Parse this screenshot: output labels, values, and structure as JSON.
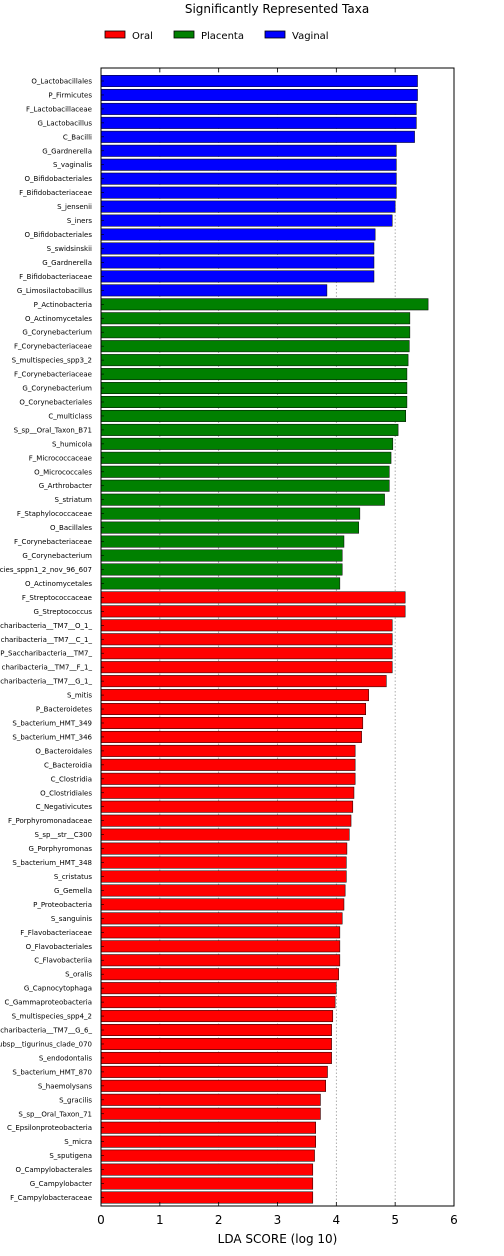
{
  "chart_data": {
    "type": "bar",
    "orientation": "horizontal",
    "title": "Significantly Represented Taxa",
    "xlabel": "LDA SCORE (log 10)",
    "ylabel": "",
    "xlim": [
      0,
      6
    ],
    "xticks": [
      0,
      1,
      2,
      3,
      4,
      5,
      6
    ],
    "grid": "vertical-dashed",
    "legend_position": "top",
    "series": [
      {
        "name": "Oral",
        "color": "#ff0000"
      },
      {
        "name": "Placenta",
        "color": "#008000"
      },
      {
        "name": "Vaginal",
        "color": "#0000ff"
      }
    ],
    "bars": [
      {
        "label": "O_Lactobacillales",
        "value": 5.38,
        "group": "Vaginal"
      },
      {
        "label": "P_Firmicutes",
        "value": 5.38,
        "group": "Vaginal"
      },
      {
        "label": "F_Lactobacillaceae",
        "value": 5.36,
        "group": "Vaginal"
      },
      {
        "label": "G_Lactobacillus",
        "value": 5.36,
        "group": "Vaginal"
      },
      {
        "label": "C_Bacilli",
        "value": 5.33,
        "group": "Vaginal"
      },
      {
        "label": "G_Gardnerella",
        "value": 5.02,
        "group": "Vaginal"
      },
      {
        "label": "S_vaginalis",
        "value": 5.02,
        "group": "Vaginal"
      },
      {
        "label": "O_Bifidobacteriales",
        "value": 5.02,
        "group": "Vaginal"
      },
      {
        "label": "F_Bifidobacteriaceae",
        "value": 5.02,
        "group": "Vaginal"
      },
      {
        "label": "S_jensenii",
        "value": 5.0,
        "group": "Vaginal"
      },
      {
        "label": "S_iners",
        "value": 4.95,
        "group": "Vaginal"
      },
      {
        "label": "O_Bifidobacteriales",
        "value": 4.66,
        "group": "Vaginal"
      },
      {
        "label": "S_swidsinskii",
        "value": 4.64,
        "group": "Vaginal"
      },
      {
        "label": "G_Gardnerella",
        "value": 4.64,
        "group": "Vaginal"
      },
      {
        "label": "F_Bifidobacteriaceae",
        "value": 4.64,
        "group": "Vaginal"
      },
      {
        "label": "G_Limosilactobacillus",
        "value": 3.84,
        "group": "Vaginal"
      },
      {
        "label": "P_Actinobacteria",
        "value": 5.56,
        "group": "Placenta"
      },
      {
        "label": "O_Actinomycetales",
        "value": 5.25,
        "group": "Placenta"
      },
      {
        "label": "G_Corynebacterium",
        "value": 5.25,
        "group": "Placenta"
      },
      {
        "label": "F_Corynebacteriaceae",
        "value": 5.24,
        "group": "Placenta"
      },
      {
        "label": "S_multispecies_spp3_2",
        "value": 5.22,
        "group": "Placenta"
      },
      {
        "label": "F_Corynebacteriaceae",
        "value": 5.2,
        "group": "Placenta"
      },
      {
        "label": "G_Corynebacterium",
        "value": 5.2,
        "group": "Placenta"
      },
      {
        "label": "O_Corynebacteriales",
        "value": 5.2,
        "group": "Placenta"
      },
      {
        "label": "C_multiclass",
        "value": 5.18,
        "group": "Placenta"
      },
      {
        "label": "S_sp__Oral_Taxon_B71",
        "value": 5.05,
        "group": "Placenta"
      },
      {
        "label": "S_humicola",
        "value": 4.96,
        "group": "Placenta"
      },
      {
        "label": "F_Micrococcaceae",
        "value": 4.93,
        "group": "Placenta"
      },
      {
        "label": "O_Micrococcales",
        "value": 4.9,
        "group": "Placenta"
      },
      {
        "label": "G_Arthrobacter",
        "value": 4.9,
        "group": "Placenta"
      },
      {
        "label": "S_striatum",
        "value": 4.82,
        "group": "Placenta"
      },
      {
        "label": "F_Staphylococcaceae",
        "value": 4.4,
        "group": "Placenta"
      },
      {
        "label": "O_Bacillales",
        "value": 4.38,
        "group": "Placenta"
      },
      {
        "label": "F_Corynebacteriaceae",
        "value": 4.13,
        "group": "Placenta"
      },
      {
        "label": "G_Corynebacterium",
        "value": 4.1,
        "group": "Placenta"
      },
      {
        "label": "cies_sppn1_2_nov_96_607",
        "value": 4.1,
        "group": "Placenta"
      },
      {
        "label": "O_Actinomycetales",
        "value": 4.06,
        "group": "Placenta"
      },
      {
        "label": "F_Streptococcaceae",
        "value": 5.17,
        "group": "Oral"
      },
      {
        "label": "G_Streptococcus",
        "value": 5.17,
        "group": "Oral"
      },
      {
        "label": "charibacteria__TM7__O_1_",
        "value": 4.95,
        "group": "Oral"
      },
      {
        "label": "charibacteria__TM7__C_1_",
        "value": 4.95,
        "group": "Oral"
      },
      {
        "label": "P_Saccharibacteria__TM7_",
        "value": 4.95,
        "group": "Oral"
      },
      {
        "label": "charibacteria__TM7__F_1_",
        "value": 4.95,
        "group": "Oral"
      },
      {
        "label": "charibacteria__TM7__G_1_",
        "value": 4.85,
        "group": "Oral"
      },
      {
        "label": "S_mitis",
        "value": 4.55,
        "group": "Oral"
      },
      {
        "label": "P_Bacteroidetes",
        "value": 4.5,
        "group": "Oral"
      },
      {
        "label": "S_bacterium_HMT_349",
        "value": 4.45,
        "group": "Oral"
      },
      {
        "label": "S_bacterium_HMT_346",
        "value": 4.43,
        "group": "Oral"
      },
      {
        "label": "O_Bacteroidales",
        "value": 4.32,
        "group": "Oral"
      },
      {
        "label": "C_Bacteroidia",
        "value": 4.32,
        "group": "Oral"
      },
      {
        "label": "C_Clostridia",
        "value": 4.32,
        "group": "Oral"
      },
      {
        "label": "O_Clostridiales",
        "value": 4.3,
        "group": "Oral"
      },
      {
        "label": "C_Negativicutes",
        "value": 4.28,
        "group": "Oral"
      },
      {
        "label": "F_Porphyromonadaceae",
        "value": 4.25,
        "group": "Oral"
      },
      {
        "label": "S_sp__str__C300",
        "value": 4.22,
        "group": "Oral"
      },
      {
        "label": "G_Porphyromonas",
        "value": 4.18,
        "group": "Oral"
      },
      {
        "label": "S_bacterium_HMT_348",
        "value": 4.17,
        "group": "Oral"
      },
      {
        "label": "S_cristatus",
        "value": 4.17,
        "group": "Oral"
      },
      {
        "label": "G_Gemella",
        "value": 4.15,
        "group": "Oral"
      },
      {
        "label": "P_Proteobacteria",
        "value": 4.13,
        "group": "Oral"
      },
      {
        "label": "S_sanguinis",
        "value": 4.1,
        "group": "Oral"
      },
      {
        "label": "F_Flavobacteriaceae",
        "value": 4.06,
        "group": "Oral"
      },
      {
        "label": "O_Flavobacteriales",
        "value": 4.06,
        "group": "Oral"
      },
      {
        "label": "C_Flavobacteriia",
        "value": 4.06,
        "group": "Oral"
      },
      {
        "label": "S_oralis",
        "value": 4.04,
        "group": "Oral"
      },
      {
        "label": "G_Capnocytophaga",
        "value": 4.0,
        "group": "Oral"
      },
      {
        "label": "C_Gammaproteobacteria",
        "value": 3.98,
        "group": "Oral"
      },
      {
        "label": "S_multispecies_spp4_2",
        "value": 3.94,
        "group": "Oral"
      },
      {
        "label": "charibacteria__TM7__G_6_",
        "value": 3.92,
        "group": "Oral"
      },
      {
        "label": "ubsp__tigurinus_clade_070",
        "value": 3.92,
        "group": "Oral"
      },
      {
        "label": "S_endodontalis",
        "value": 3.92,
        "group": "Oral"
      },
      {
        "label": "S_bacterium_HMT_870",
        "value": 3.85,
        "group": "Oral"
      },
      {
        "label": "S_haemolysans",
        "value": 3.82,
        "group": "Oral"
      },
      {
        "label": "S_gracilis",
        "value": 3.73,
        "group": "Oral"
      },
      {
        "label": "S_sp__Oral_Taxon_71",
        "value": 3.73,
        "group": "Oral"
      },
      {
        "label": "C_Epsilonproteobacteria",
        "value": 3.65,
        "group": "Oral"
      },
      {
        "label": "S_micra",
        "value": 3.65,
        "group": "Oral"
      },
      {
        "label": "S_sputigena",
        "value": 3.63,
        "group": "Oral"
      },
      {
        "label": "O_Campylobacterales",
        "value": 3.6,
        "group": "Oral"
      },
      {
        "label": "G_Campylobacter",
        "value": 3.6,
        "group": "Oral"
      },
      {
        "label": "F_Campylobacteraceae",
        "value": 3.6,
        "group": "Oral"
      }
    ]
  }
}
